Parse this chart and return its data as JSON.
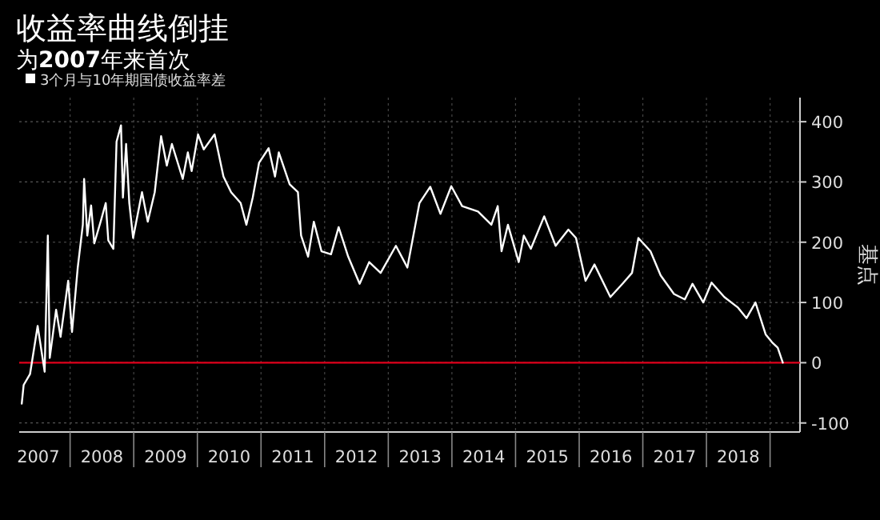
{
  "chart_data": {
    "type": "line",
    "title": "收益率曲线倒挂",
    "subtitle": "为**2007**年来首次",
    "ylabel": "基点",
    "x": [
      2007.24,
      2007.27,
      2007.37,
      2007.49,
      2007.6,
      2007.65,
      2007.68,
      2007.78,
      2007.85,
      2007.97,
      2008.03,
      2008.12,
      2008.2,
      2008.22,
      2008.27,
      2008.33,
      2008.38,
      2008.49,
      2008.56,
      2008.6,
      2008.68,
      2008.73,
      2008.8,
      2008.83,
      2008.88,
      2008.93,
      2008.99,
      2009.13,
      2009.22,
      2009.33,
      2009.43,
      2009.52,
      2009.6,
      2009.77,
      2009.85,
      2009.91,
      2010.01,
      2010.1,
      2010.27,
      2010.41,
      2010.53,
      2010.68,
      2010.77,
      2010.87,
      2010.97,
      2011.12,
      2011.22,
      2011.28,
      2011.45,
      2011.58,
      2011.63,
      2011.74,
      2011.83,
      2011.95,
      2012.1,
      2012.22,
      2012.37,
      2012.55,
      2012.7,
      2012.88,
      2013.12,
      2013.3,
      2013.49,
      2013.66,
      2013.82,
      2013.99,
      2014.16,
      2014.41,
      2014.62,
      2014.72,
      2014.78,
      2014.88,
      2015.05,
      2015.13,
      2015.24,
      2015.45,
      2015.63,
      2015.83,
      2015.95,
      2016.1,
      2016.24,
      2016.49,
      2016.68,
      2016.83,
      2016.93,
      2017.12,
      2017.28,
      2017.49,
      2017.66,
      2017.78,
      2017.95,
      2018.08,
      2018.28,
      2018.49,
      2018.63,
      2018.77,
      2018.93,
      2019.03,
      2019.12,
      2019.2
    ],
    "series": [
      {
        "name": "3个月与10年期国债收益率差",
        "color": "#ffffff",
        "values": [
          -68,
          -37,
          -19,
          61,
          -15,
          211,
          8,
          88,
          43,
          136,
          51,
          158,
          229,
          305,
          211,
          261,
          198,
          238,
          265,
          203,
          189,
          367,
          394,
          274,
          363,
          265,
          207,
          283,
          234,
          283,
          376,
          327,
          363,
          305,
          349,
          318,
          379,
          354,
          379,
          309,
          283,
          265,
          229,
          274,
          332,
          356,
          309,
          349,
          296,
          283,
          211,
          176,
          234,
          185,
          180,
          225,
          176,
          131,
          167,
          149,
          194,
          158,
          265,
          292,
          247,
          293,
          260,
          251,
          229,
          260,
          185,
          229,
          167,
          211,
          189,
          243,
          194,
          221,
          207,
          136,
          163,
          109,
          131,
          149,
          207,
          185,
          145,
          114,
          105,
          131,
          100,
          133,
          109,
          92,
          74,
          100,
          47,
          34,
          25,
          0
        ]
      }
    ],
    "xlim": [
      2007.2,
      2019.47
    ],
    "ylim": [
      -115,
      440
    ],
    "xticks": [
      {
        "value": 2007.5,
        "label": "2007"
      },
      {
        "value": 2008,
        "label": null
      },
      {
        "value": 2008.5,
        "label": "2008"
      },
      {
        "value": 2009,
        "label": null
      },
      {
        "value": 2009.5,
        "label": "2009"
      },
      {
        "value": 2010,
        "label": null
      },
      {
        "value": 2010.5,
        "label": "2010"
      },
      {
        "value": 2011,
        "label": null
      },
      {
        "value": 2011.5,
        "label": "2011"
      },
      {
        "value": 2012,
        "label": null
      },
      {
        "value": 2012.5,
        "label": "2012"
      },
      {
        "value": 2013,
        "label": null
      },
      {
        "value": 2013.5,
        "label": "2013"
      },
      {
        "value": 2014,
        "label": null
      },
      {
        "value": 2014.5,
        "label": "2014"
      },
      {
        "value": 2015,
        "label": null
      },
      {
        "value": 2015.5,
        "label": "2015"
      },
      {
        "value": 2016,
        "label": null
      },
      {
        "value": 2016.5,
        "label": "2016"
      },
      {
        "value": 2017,
        "label": null
      },
      {
        "value": 2017.5,
        "label": "2017"
      },
      {
        "value": 2018,
        "label": null
      },
      {
        "value": 2018.5,
        "label": "2018"
      },
      {
        "value": 2019,
        "label": null
      }
    ],
    "yticks": [
      -100,
      0,
      100,
      200,
      300,
      400
    ],
    "ref_lines": [
      {
        "axis": "y",
        "value": 0,
        "color": "#e0001b"
      }
    ],
    "grid": true,
    "legend": "top left"
  }
}
